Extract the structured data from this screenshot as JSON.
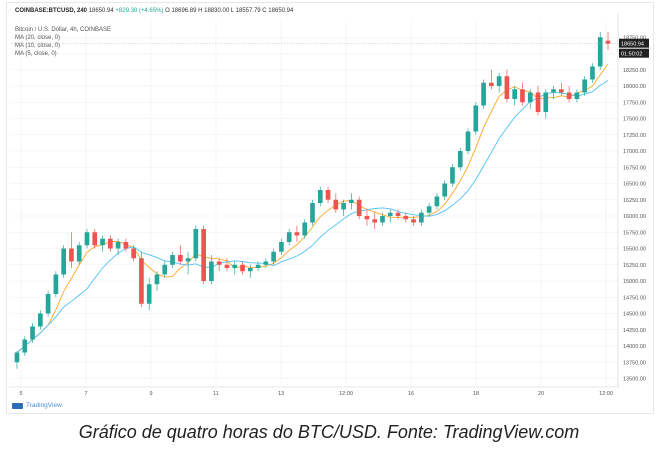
{
  "header": {
    "symbol": "COINBASE:BTCUSD, 240",
    "last": "18650.94",
    "change": "+829.38 (+4.65%)",
    "ohlc": "O 18696.89  H 18830.00  L 18557.79  C 18650.94"
  },
  "legend": {
    "title": "Bitcoin / U.S. Dollar, 4h, COINBASE",
    "ma20": "MA (20, close, 0)",
    "ma10": "MA (10, close, 0)",
    "ma5": "MA (5, close, 0)"
  },
  "price_label": "18650.94",
  "timer_label": "01:50:02",
  "brand": "TradingView",
  "caption": "Gráfico de quatro horas do BTC/USD. Fonte: TradingView.com",
  "colors": {
    "up": "#26a69a",
    "down": "#ef5350",
    "ma_blue": "#4fc3f7",
    "ma_orange": "#ffa726",
    "grid": "#f0f0f0",
    "axis_text": "#555555"
  },
  "chart_data": {
    "type": "candlestick",
    "title": "Bitcoin / U.S. Dollar, 4h, COINBASE",
    "y_ticks": [
      18750,
      18500,
      18250,
      18000,
      17750,
      17500,
      17250,
      17000,
      16750,
      16500,
      16250,
      16000,
      15750,
      15500,
      15250,
      15000,
      14750,
      14500,
      14250,
      14000,
      13750,
      13500
    ],
    "ylim": [
      13400,
      19000
    ],
    "x_ticks": [
      "5",
      "7",
      "9",
      "11",
      "13",
      "12:00",
      "16",
      "18",
      "20",
      "12:00"
    ],
    "candles": [
      [
        13750,
        13920,
        13650,
        13900
      ],
      [
        13900,
        14150,
        13850,
        14100
      ],
      [
        14100,
        14350,
        14050,
        14300
      ],
      [
        14300,
        14550,
        14250,
        14500
      ],
      [
        14500,
        14850,
        14450,
        14800
      ],
      [
        14800,
        15150,
        14750,
        15100
      ],
      [
        15100,
        15550,
        15050,
        15500
      ],
      [
        15500,
        15750,
        15200,
        15300
      ],
      [
        15300,
        15600,
        15250,
        15550
      ],
      [
        15550,
        15800,
        15500,
        15750
      ],
      [
        15750,
        15800,
        15500,
        15550
      ],
      [
        15550,
        15700,
        15450,
        15650
      ],
      [
        15650,
        15700,
        15450,
        15500
      ],
      [
        15500,
        15650,
        15400,
        15600
      ],
      [
        15600,
        15650,
        15450,
        15500
      ],
      [
        15500,
        15550,
        15300,
        15350
      ],
      [
        15350,
        15450,
        14600,
        14650
      ],
      [
        14650,
        15050,
        14550,
        14950
      ],
      [
        14950,
        15150,
        14850,
        15100
      ],
      [
        15100,
        15300,
        15050,
        15250
      ],
      [
        15250,
        15450,
        15200,
        15400
      ],
      [
        15400,
        15550,
        15250,
        15300
      ],
      [
        15300,
        15450,
        15100,
        15350
      ],
      [
        15350,
        15850,
        15300,
        15800
      ],
      [
        15800,
        15850,
        14950,
        15000
      ],
      [
        15000,
        15400,
        14950,
        15300
      ],
      [
        15300,
        15350,
        15150,
        15250
      ],
      [
        15250,
        15350,
        15150,
        15200
      ],
      [
        15200,
        15300,
        15100,
        15250
      ],
      [
        15250,
        15300,
        15100,
        15150
      ],
      [
        15150,
        15250,
        15050,
        15200
      ],
      [
        15200,
        15300,
        15150,
        15250
      ],
      [
        15250,
        15350,
        15200,
        15300
      ],
      [
        15300,
        15500,
        15250,
        15450
      ],
      [
        15450,
        15650,
        15400,
        15600
      ],
      [
        15600,
        15800,
        15550,
        15750
      ],
      [
        15750,
        15850,
        15600,
        15700
      ],
      [
        15700,
        15950,
        15650,
        15900
      ],
      [
        15900,
        16250,
        15850,
        16200
      ],
      [
        16200,
        16450,
        16150,
        16400
      ],
      [
        16400,
        16450,
        16200,
        16250
      ],
      [
        16250,
        16350,
        16050,
        16100
      ],
      [
        16100,
        16250,
        16000,
        16200
      ],
      [
        16200,
        16350,
        16100,
        16250
      ],
      [
        16250,
        16300,
        15950,
        16000
      ],
      [
        16000,
        16100,
        15850,
        15950
      ],
      [
        15950,
        16050,
        15800,
        15900
      ],
      [
        15900,
        16050,
        15850,
        16000
      ],
      [
        16000,
        16100,
        15900,
        16050
      ],
      [
        16050,
        16100,
        15950,
        16000
      ],
      [
        16000,
        16050,
        15900,
        15950
      ],
      [
        15950,
        16000,
        15850,
        15900
      ],
      [
        15900,
        16100,
        15850,
        16050
      ],
      [
        16050,
        16200,
        16000,
        16150
      ],
      [
        16150,
        16350,
        16100,
        16300
      ],
      [
        16300,
        16550,
        16250,
        16500
      ],
      [
        16500,
        16800,
        16450,
        16750
      ],
      [
        16750,
        17050,
        16700,
        17000
      ],
      [
        17000,
        17350,
        16950,
        17300
      ],
      [
        17300,
        17750,
        17250,
        17700
      ],
      [
        17700,
        18100,
        17650,
        18050
      ],
      [
        18050,
        18250,
        17950,
        18000
      ],
      [
        18000,
        18200,
        17900,
        18150
      ],
      [
        18150,
        18250,
        17750,
        17800
      ],
      [
        17800,
        18000,
        17700,
        17950
      ],
      [
        17950,
        18050,
        17700,
        17750
      ],
      [
        17750,
        17950,
        17650,
        17900
      ],
      [
        17900,
        18000,
        17550,
        17600
      ],
      [
        17600,
        17950,
        17500,
        17900
      ],
      [
        17900,
        18000,
        17800,
        17950
      ],
      [
        17950,
        18050,
        17850,
        17900
      ],
      [
        17900,
        18000,
        17750,
        17800
      ],
      [
        17800,
        17950,
        17750,
        17900
      ],
      [
        17900,
        18150,
        17850,
        18100
      ],
      [
        18100,
        18350,
        18050,
        18300
      ],
      [
        18300,
        18830,
        18250,
        18750
      ],
      [
        18696.89,
        18830,
        18557.79,
        18650.94
      ]
    ]
  }
}
